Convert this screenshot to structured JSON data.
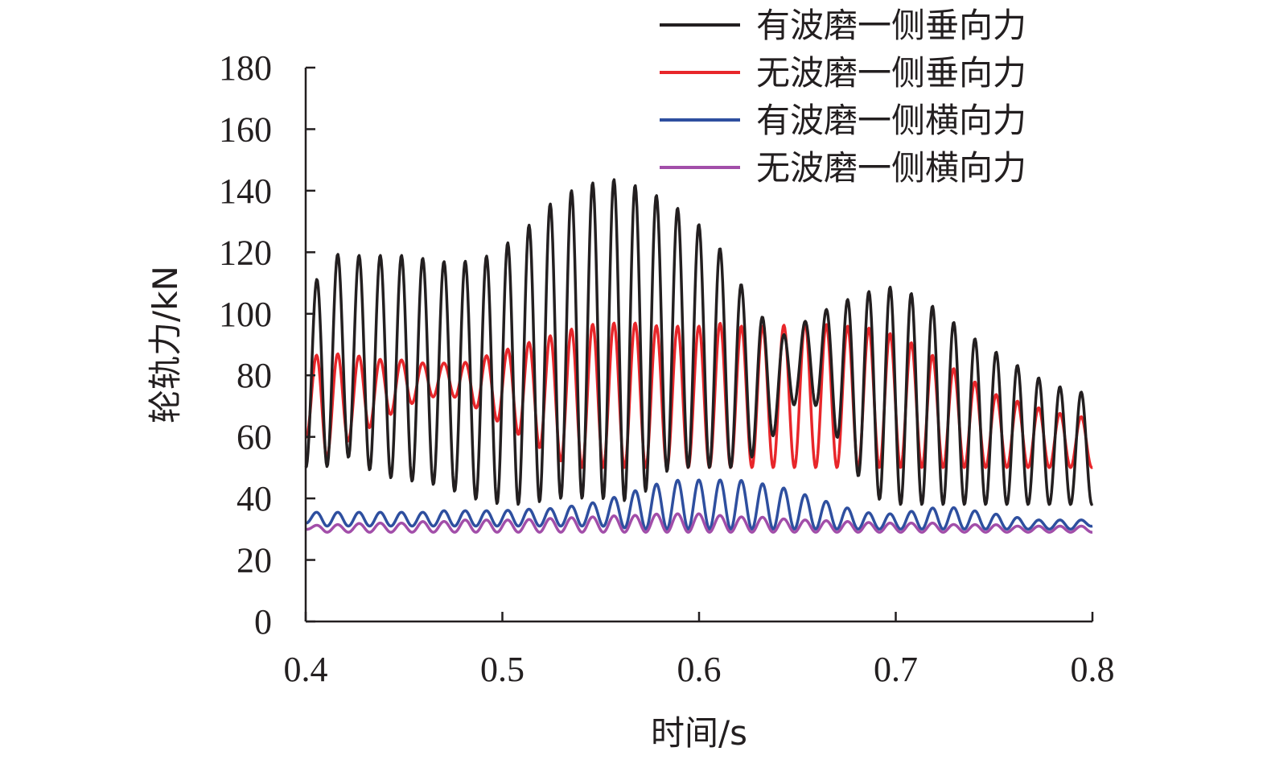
{
  "chart_data": {
    "type": "line",
    "xlabel": "时间/s",
    "ylabel": "轮轨力/kN",
    "xlim": [
      0.4,
      0.8
    ],
    "ylim": [
      0,
      180
    ],
    "xticks": [
      "0.4",
      "0.5",
      "0.6",
      "0.7",
      "0.8"
    ],
    "yticks": [
      "0",
      "20",
      "40",
      "60",
      "80",
      "100",
      "120",
      "140",
      "160",
      "180"
    ],
    "grid": false,
    "legend_position": "top-right",
    "series": [
      {
        "name": "有波磨一侧垂向力",
        "color": "#231f20",
        "x": [
          0.4,
          0.41,
          0.42,
          0.43,
          0.44,
          0.45,
          0.46,
          0.47,
          0.48,
          0.49,
          0.5,
          0.51,
          0.52,
          0.53,
          0.54,
          0.55,
          0.56,
          0.57,
          0.58,
          0.59,
          0.6,
          0.61,
          0.62,
          0.63,
          0.64,
          0.65,
          0.66,
          0.67,
          0.68,
          0.69,
          0.7,
          0.71,
          0.72,
          0.73,
          0.74,
          0.75,
          0.76,
          0.77,
          0.78,
          0.79,
          0.8
        ],
        "peak": [
          100,
          120,
          119,
          119,
          119,
          119,
          118,
          117,
          117,
          118,
          122,
          126,
          134,
          138,
          142,
          143,
          144,
          141,
          138,
          134,
          129,
          122,
          111,
          101,
          92,
          96,
          100,
          103,
          106,
          108,
          109,
          106,
          102,
          97,
          92,
          88,
          84,
          80,
          77,
          75,
          74
        ],
        "trough": [
          50,
          50,
          54,
          50,
          47,
          46,
          45,
          44,
          41,
          39,
          38,
          38,
          39,
          40,
          40,
          40,
          39,
          40,
          48,
          50,
          50,
          50,
          50,
          55,
          62,
          72,
          70,
          60,
          48,
          40,
          38,
          38,
          38,
          38,
          38,
          38,
          38,
          38,
          38,
          38,
          38
        ]
      },
      {
        "name": "无波磨一侧垂向力",
        "color": "#e8262a",
        "x": [
          0.4,
          0.41,
          0.42,
          0.43,
          0.44,
          0.45,
          0.46,
          0.47,
          0.48,
          0.49,
          0.5,
          0.51,
          0.52,
          0.53,
          0.54,
          0.55,
          0.56,
          0.57,
          0.58,
          0.59,
          0.6,
          0.61,
          0.62,
          0.63,
          0.64,
          0.65,
          0.66,
          0.67,
          0.68,
          0.69,
          0.7,
          0.71,
          0.72,
          0.73,
          0.74,
          0.75,
          0.76,
          0.77,
          0.78,
          0.79,
          0.8
        ],
        "peak": [
          86,
          87,
          87,
          86,
          85,
          85,
          84,
          84,
          84,
          86,
          88,
          90,
          92,
          94,
          96,
          97,
          97,
          97,
          96,
          96,
          96,
          97,
          96,
          96,
          96,
          97,
          97,
          96,
          96,
          95,
          93,
          90,
          86,
          82,
          78,
          74,
          72,
          70,
          68,
          67,
          66
        ],
        "trough": [
          60,
          53,
          58,
          62,
          66,
          70,
          72,
          74,
          72,
          68,
          64,
          60,
          56,
          52,
          50,
          50,
          50,
          50,
          50,
          50,
          50,
          50,
          50,
          50,
          50,
          50,
          50,
          50,
          50,
          50,
          50,
          50,
          50,
          50,
          50,
          50,
          50,
          50,
          50,
          50,
          50
        ]
      },
      {
        "name": "有波磨一侧横向力",
        "color": "#2e4f9f",
        "x": [
          0.4,
          0.41,
          0.42,
          0.43,
          0.44,
          0.45,
          0.46,
          0.47,
          0.48,
          0.49,
          0.5,
          0.51,
          0.52,
          0.53,
          0.54,
          0.55,
          0.56,
          0.57,
          0.58,
          0.59,
          0.6,
          0.61,
          0.62,
          0.63,
          0.64,
          0.65,
          0.66,
          0.67,
          0.68,
          0.69,
          0.7,
          0.71,
          0.72,
          0.73,
          0.74,
          0.75,
          0.76,
          0.77,
          0.78,
          0.79,
          0.8
        ],
        "peak": [
          35.5,
          35.5,
          35.5,
          35.5,
          35.5,
          35.5,
          35.5,
          36,
          36,
          36,
          36,
          36.5,
          36.5,
          37,
          38,
          39,
          41,
          43,
          45,
          46,
          46,
          46,
          46,
          45,
          44,
          42,
          40,
          38,
          36,
          35,
          35,
          36,
          37,
          37,
          36,
          35,
          34,
          33,
          33,
          33,
          33
        ],
        "trough": [
          32,
          31,
          31,
          31,
          31,
          31,
          31,
          31,
          31,
          31,
          31,
          31,
          31,
          31,
          31,
          31,
          30.5,
          30,
          30,
          30,
          30,
          30,
          30,
          30,
          30,
          30,
          30,
          30,
          30,
          30,
          30,
          30,
          30,
          30,
          30,
          30,
          30,
          30,
          30,
          30,
          31
        ]
      },
      {
        "name": "无波磨一侧横向力",
        "color": "#a24ea9",
        "x": [
          0.4,
          0.41,
          0.42,
          0.43,
          0.44,
          0.45,
          0.46,
          0.47,
          0.48,
          0.49,
          0.5,
          0.51,
          0.52,
          0.53,
          0.54,
          0.55,
          0.56,
          0.57,
          0.58,
          0.59,
          0.6,
          0.61,
          0.62,
          0.63,
          0.64,
          0.65,
          0.66,
          0.67,
          0.68,
          0.69,
          0.7,
          0.71,
          0.72,
          0.73,
          0.74,
          0.75,
          0.76,
          0.77,
          0.78,
          0.79,
          0.8
        ],
        "peak": [
          31,
          31.5,
          31.5,
          32,
          32,
          32,
          32.5,
          32.5,
          33,
          33,
          33,
          33,
          33.5,
          33.5,
          34,
          34,
          34.5,
          34.5,
          35,
          35,
          35,
          34.5,
          34,
          34,
          33.5,
          33,
          33,
          32.5,
          32.5,
          32,
          32,
          32,
          32,
          31.5,
          31.5,
          31.5,
          31,
          31,
          31,
          31,
          31
        ],
        "trough": [
          30,
          29,
          29,
          29,
          29,
          29,
          29,
          29,
          29,
          29,
          29,
          29,
          29,
          29,
          29,
          29,
          29,
          29,
          29,
          29,
          29,
          29,
          29,
          29,
          29,
          29,
          29,
          29,
          29,
          29,
          29,
          29,
          29,
          29,
          29,
          29,
          29,
          29,
          29,
          29,
          29
        ]
      }
    ]
  }
}
